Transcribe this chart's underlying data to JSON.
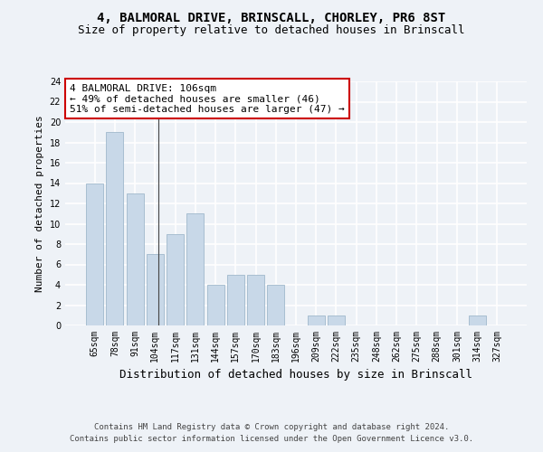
{
  "title1": "4, BALMORAL DRIVE, BRINSCALL, CHORLEY, PR6 8ST",
  "title2": "Size of property relative to detached houses in Brinscall",
  "xlabel": "Distribution of detached houses by size in Brinscall",
  "ylabel": "Number of detached properties",
  "categories": [
    "65sqm",
    "78sqm",
    "91sqm",
    "104sqm",
    "117sqm",
    "131sqm",
    "144sqm",
    "157sqm",
    "170sqm",
    "183sqm",
    "196sqm",
    "209sqm",
    "222sqm",
    "235sqm",
    "248sqm",
    "262sqm",
    "275sqm",
    "288sqm",
    "301sqm",
    "314sqm",
    "327sqm"
  ],
  "values": [
    14,
    19,
    13,
    7,
    9,
    11,
    4,
    5,
    5,
    4,
    0,
    1,
    1,
    0,
    0,
    0,
    0,
    0,
    0,
    1,
    0
  ],
  "bar_color": "#c8d8e8",
  "bar_edge_color": "#a0b8cc",
  "annotation_line1": "4 BALMORAL DRIVE: 106sqm",
  "annotation_line2": "← 49% of detached houses are smaller (46)",
  "annotation_line3": "51% of semi-detached houses are larger (47) →",
  "annotation_box_color": "#ffffff",
  "annotation_box_edge": "#cc0000",
  "ylim": [
    0,
    24
  ],
  "yticks": [
    0,
    2,
    4,
    6,
    8,
    10,
    12,
    14,
    16,
    18,
    20,
    22,
    24
  ],
  "footer1": "Contains HM Land Registry data © Crown copyright and database right 2024.",
  "footer2": "Contains public sector information licensed under the Open Government Licence v3.0.",
  "bg_color": "#eef2f7",
  "grid_color": "#ffffff",
  "title1_fontsize": 10,
  "title2_fontsize": 9,
  "xlabel_fontsize": 9,
  "ylabel_fontsize": 8,
  "tick_fontsize": 7,
  "footer_fontsize": 6.5,
  "annotation_fontsize": 8
}
